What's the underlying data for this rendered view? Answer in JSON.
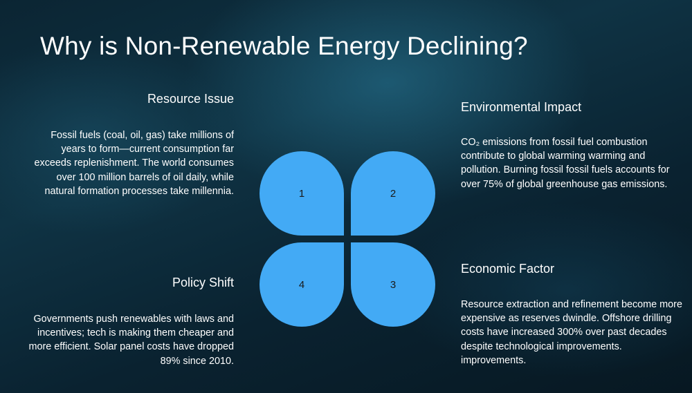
{
  "title": "Why is Non-Renewable Energy Declining?",
  "sections": {
    "resource": {
      "heading": "Resource Issue",
      "body": "Fossil fuels (coal, oil, gas) take millions of years to form—current consumption far exceeds replenishment. The world consumes over 100 million barrels of oil daily, while natural formation processes take millennia."
    },
    "environment": {
      "heading": "Environmental Impact",
      "body": "CO₂ emissions from fossil fuel combustion contribute to global warming warming and pollution. Burning fossil fossil fuels accounts for over 75% of global greenhouse gas emissions."
    },
    "economic": {
      "heading": "Economic Factor",
      "body": "Resource extraction and refinement become more expensive as reserves dwindle. Offshore drilling costs have increased 300% over past decades despite technological improvements. improvements."
    },
    "policy": {
      "heading": "Policy Shift",
      "body": "Governments push renewables with laws and incentives; tech is making them cheaper and more efficient. Solar panel costs have dropped 89% since 2010."
    }
  },
  "petals": {
    "p1": "1",
    "p2": "2",
    "p3": "3",
    "p4": "4"
  },
  "colors": {
    "petal": "#43aaf5",
    "text": "#ffffff"
  }
}
